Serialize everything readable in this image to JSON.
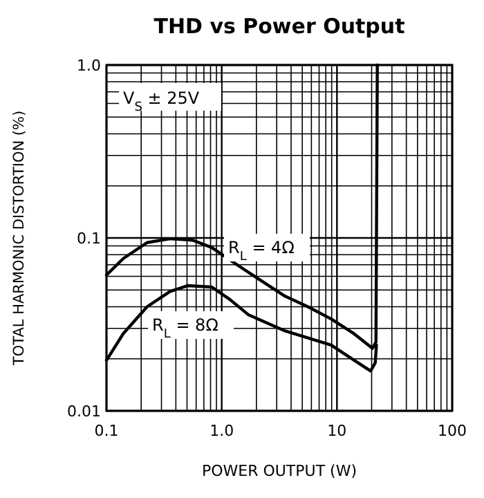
{
  "chart_data": {
    "type": "line",
    "title": "THD vs Power Output",
    "xlabel": "POWER OUTPUT (W)",
    "ylabel": "TOTAL HARMONIC DISTORTION (%)",
    "log": "xy",
    "grid": true,
    "annotations": [
      "V$_{S}$ ± 25V"
    ],
    "xlim": [
      0.1,
      100
    ],
    "ylim": [
      0.01,
      1
    ],
    "xticks": [
      0.1,
      {
        "value": 0.2,
        "label": null
      },
      {
        "value": 0.3,
        "label": null
      },
      {
        "value": 0.4,
        "label": null
      },
      {
        "value": 0.5,
        "label": null
      },
      {
        "value": 0.6,
        "label": null
      },
      {
        "value": 0.7,
        "label": null
      },
      {
        "value": 0.8,
        "label": null
      },
      {
        "value": 0.9,
        "label": null
      },
      {
        "value": 1,
        "label": "1.0"
      },
      {
        "value": 2,
        "label": null
      },
      {
        "value": 3,
        "label": null
      },
      {
        "value": 4,
        "label": null
      },
      {
        "value": 5,
        "label": null
      },
      {
        "value": 6,
        "label": null
      },
      {
        "value": 7,
        "label": null
      },
      {
        "value": 8,
        "label": null
      },
      {
        "value": 9,
        "label": null
      },
      10,
      {
        "value": 20,
        "label": null
      },
      {
        "value": 30,
        "label": null
      },
      {
        "value": 40,
        "label": null
      },
      {
        "value": 50,
        "label": null
      },
      {
        "value": 60,
        "label": null
      },
      {
        "value": 70,
        "label": null
      },
      {
        "value": 80,
        "label": null
      },
      {
        "value": 90,
        "label": null
      },
      100
    ],
    "yticks": [
      0.01,
      {
        "value": 0.02,
        "label": null
      },
      {
        "value": 0.03,
        "label": null
      },
      {
        "value": 0.04,
        "label": null
      },
      {
        "value": 0.05,
        "label": null
      },
      {
        "value": 0.06,
        "label": null
      },
      {
        "value": 0.07,
        "label": null
      },
      {
        "value": 0.08,
        "label": null
      },
      {
        "value": 0.09,
        "label": null
      },
      0.1,
      {
        "value": 0.2,
        "label": null
      },
      {
        "value": 0.3,
        "label": null
      },
      {
        "value": 0.4,
        "label": null
      },
      {
        "value": 0.5,
        "label": null
      },
      {
        "value": 0.6,
        "label": null
      },
      {
        "value": 0.7,
        "label": null
      },
      {
        "value": 0.8,
        "label": null
      },
      {
        "value": 0.9,
        "label": null
      },
      {
        "value": 1,
        "label": "1.0"
      }
    ],
    "series": [
      {
        "name": "R$_{L}$ = 4Ω",
        "color": "#000000",
        "x": [
          0.1,
          0.14,
          0.225,
          0.356,
          0.56,
          0.82,
          1.4,
          2.25,
          3.55,
          5.6,
          8.9,
          14,
          20.3,
          21.8,
          22.4
        ],
        "values": [
          0.061,
          0.076,
          0.094,
          0.099,
          0.097,
          0.088,
          0.069,
          0.056,
          0.046,
          0.04,
          0.034,
          0.028,
          0.023,
          0.025,
          1
        ]
      },
      {
        "name": "R$_{L}$ = 8Ω",
        "color": "#000000",
        "x": [
          0.1,
          0.14,
          0.225,
          0.356,
          0.51,
          0.82,
          1.18,
          1.7,
          3.55,
          8.9,
          19.6,
          21.5,
          22
        ],
        "values": [
          0.0196,
          0.028,
          0.04,
          0.049,
          0.053,
          0.052,
          0.044,
          0.036,
          0.029,
          0.024,
          0.017,
          0.019,
          0.024
        ]
      }
    ]
  }
}
